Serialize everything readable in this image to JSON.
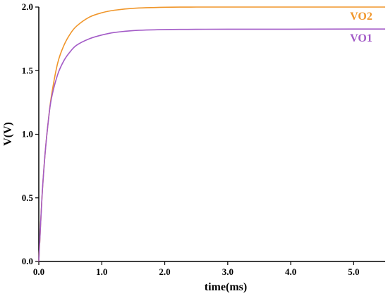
{
  "chart_data": {
    "type": "line",
    "title": "",
    "xlabel": "time(ms)",
    "ylabel": "V(V)",
    "xlim": [
      0,
      5.5
    ],
    "ylim": [
      0,
      2.0
    ],
    "x_ticks": [
      0.0,
      1.0,
      2.0,
      3.0,
      4.0,
      5.0
    ],
    "x_tick_labels": [
      "0.0",
      "1.0",
      "2.0",
      "3.0",
      "4.0",
      "5.0"
    ],
    "y_ticks": [
      0.0,
      0.5,
      1.0,
      1.5,
      2.0
    ],
    "y_tick_labels": [
      "0.0",
      "0.5",
      "1.0",
      "1.5",
      "2.0"
    ],
    "grid": false,
    "legend": "inline labels at right end of curves",
    "series": [
      {
        "name": "VO2",
        "color": "#f0962a",
        "x": [
          0.0,
          0.05,
          0.1,
          0.15,
          0.2,
          0.3,
          0.4,
          0.5,
          0.6,
          0.8,
          1.0,
          1.2,
          1.5,
          2.0,
          2.5,
          3.0,
          4.0,
          5.0,
          5.5
        ],
        "y": [
          0.0,
          0.5,
          0.85,
          1.1,
          1.3,
          1.56,
          1.7,
          1.79,
          1.85,
          1.92,
          1.955,
          1.975,
          1.99,
          1.998,
          2.0,
          2.0,
          2.0,
          2.0,
          2.0
        ]
      },
      {
        "name": "VO1",
        "color": "#a35bc7",
        "x": [
          0.0,
          0.05,
          0.1,
          0.15,
          0.2,
          0.3,
          0.4,
          0.5,
          0.6,
          0.8,
          1.0,
          1.2,
          1.5,
          2.0,
          2.5,
          3.0,
          4.0,
          5.0,
          5.5
        ],
        "y": [
          0.0,
          0.5,
          0.85,
          1.1,
          1.28,
          1.47,
          1.58,
          1.65,
          1.7,
          1.75,
          1.78,
          1.8,
          1.815,
          1.823,
          1.825,
          1.826,
          1.826,
          1.827,
          1.827
        ]
      }
    ]
  }
}
